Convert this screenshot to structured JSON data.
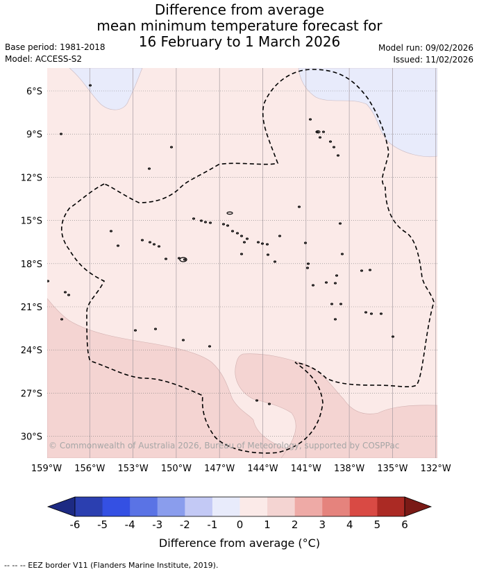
{
  "title": {
    "line1": "Difference from average",
    "line2": "mean minimum temperature forecast for",
    "line3": "16 February to 1 March 2026"
  },
  "meta": {
    "base_period": "Base period: 1981-2018",
    "model": "Model: ACCESS-S2",
    "model_run": "Model run: 09/02/2026",
    "issued": "Issued: 11/02/2026"
  },
  "map": {
    "copyright": "© Commonwealth of Australia 2026, Bureau of Meteorology, supported by COSPPac",
    "lat_labels": [
      "6°S",
      "9°S",
      "12°S",
      "15°S",
      "18°S",
      "21°S",
      "24°S",
      "27°S",
      "30°S"
    ],
    "lon_labels": [
      "159°W",
      "156°W",
      "153°W",
      "150°W",
      "147°W",
      "144°W",
      "141°W",
      "138°W",
      "135°W",
      "132°W"
    ],
    "colors": {
      "band_neg1_0": "#e8ebfb",
      "band_0_1": "#fbeae8",
      "band_1_2": "#f4d4d2",
      "outline": "#000000"
    }
  },
  "colorbar": {
    "ticks": [
      "-6",
      "-5",
      "-4",
      "-3",
      "-2",
      "-1",
      "0",
      "1",
      "2",
      "3",
      "4",
      "5",
      "6"
    ],
    "colors": [
      "#2b3fb0",
      "#3450e3",
      "#5a73e5",
      "#8a9ded",
      "#c3c9f5",
      "#e8ebfb",
      "#fbeae8",
      "#f4d4d2",
      "#eeaaa6",
      "#e5837d",
      "#d94a44",
      "#ab2a24"
    ],
    "under_color": "#1d2a83",
    "over_color": "#7a1a16",
    "label": "Difference from average (°C)"
  },
  "footer": "-- -- -- EEZ border V11 (Flanders Marine Institute, 2019)."
}
